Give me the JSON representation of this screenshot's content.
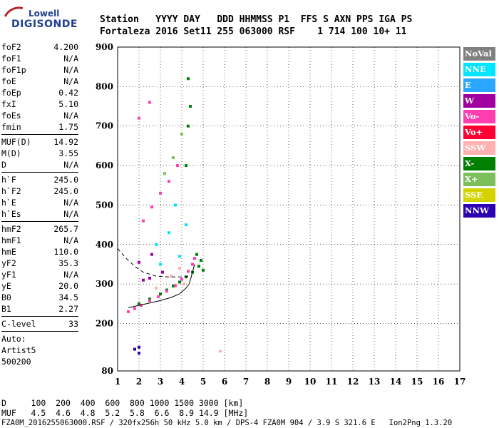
{
  "logo": {
    "line1": "Lowell",
    "line2": "DIGISONDE"
  },
  "header": {
    "row1": "Station   YYYY DAY   DDD HHMMSS P1  FFS S AXN PPS IGA PS",
    "row2": "Fortaleza 2016 Set11 255 063000 RSF    1 714 100 10+ 11"
  },
  "params": {
    "group1": [
      {
        "k": "foF2",
        "v": "4.200"
      },
      {
        "k": "foF1",
        "v": "N/A"
      },
      {
        "k": "foF1p",
        "v": "N/A"
      },
      {
        "k": "foE",
        "v": "N/A"
      },
      {
        "k": "foEp",
        "v": "0.42"
      },
      {
        "k": "fxI",
        "v": "5.10"
      },
      {
        "k": "foEs",
        "v": "N/A"
      },
      {
        "k": "fmin",
        "v": "1.75"
      }
    ],
    "group2": [
      {
        "k": "MUF(D)",
        "v": "14.92"
      },
      {
        "k": "M(D)",
        "v": "3.55"
      },
      {
        "k": "D",
        "v": "N/A"
      }
    ],
    "group3": [
      {
        "k": "h`F",
        "v": "245.0"
      },
      {
        "k": "h`F2",
        "v": "245.0"
      },
      {
        "k": "h`E",
        "v": "N/A"
      },
      {
        "k": "h`Es",
        "v": "N/A"
      }
    ],
    "group4": [
      {
        "k": "hmF2",
        "v": "265.7"
      },
      {
        "k": "hmF1",
        "v": "N/A"
      },
      {
        "k": "hmE",
        "v": "110.0"
      },
      {
        "k": "yF2",
        "v": "35.3"
      },
      {
        "k": "yF1",
        "v": "N/A"
      },
      {
        "k": "yE",
        "v": "20.0"
      },
      {
        "k": "B0",
        "v": "34.5"
      },
      {
        "k": "B1",
        "v": "2.27"
      }
    ],
    "group5": [
      {
        "k": "C-level",
        "v": "33"
      }
    ],
    "auto": [
      "Auto:",
      "Artist5",
      "500200"
    ]
  },
  "legend": [
    {
      "label": "NoVal",
      "color": "#808080"
    },
    {
      "label": "NNE",
      "color": "#00e5ff"
    },
    {
      "label": "E",
      "color": "#2aa7ff"
    },
    {
      "label": "W",
      "color": "#a000a0"
    },
    {
      "label": "Vo-",
      "color": "#ff3fb0"
    },
    {
      "label": "Vo+",
      "color": "#ff0033"
    },
    {
      "label": "SSW",
      "color": "#ffb0b0"
    },
    {
      "label": "X-",
      "color": "#008000"
    },
    {
      "label": "X+",
      "color": "#7dbf5a"
    },
    {
      "label": "SSE",
      "color": "#d4d400"
    },
    {
      "label": "NNW",
      "color": "#2a00b0"
    }
  ],
  "footer": {
    "row1": "D     100  200  400  600  800 1000 1500 3000 [km]",
    "row2": "MUF   4.5  4.6  4.8  5.2  5.8  6.6  8.9 14.9 [MHz]",
    "row3": "FZA0M_2016255063000.RSF / 320fx256h 50 kHz 5.0 km / DPS-4 FZA0M 904 / 3.9 S 321.6 E   Ion2Png 1.3.20"
  },
  "chart_data": {
    "type": "scatter",
    "title": "",
    "xlabel": "",
    "ylabel": "",
    "xlim": [
      1,
      17
    ],
    "ylim": [
      80,
      900
    ],
    "xticks": [
      1,
      2,
      3,
      4,
      5,
      6,
      7,
      8,
      9,
      10,
      11,
      12,
      13,
      14,
      15,
      16,
      17
    ],
    "yticks": [
      80,
      200,
      300,
      400,
      500,
      600,
      700,
      800,
      900
    ],
    "grid": true,
    "series": [
      {
        "name": "X-",
        "color": "#008000",
        "points": [
          [
            2.0,
            250
          ],
          [
            2.5,
            262
          ],
          [
            3.0,
            275
          ],
          [
            3.3,
            285
          ],
          [
            3.6,
            295
          ],
          [
            3.9,
            305
          ],
          [
            4.2,
            318
          ],
          [
            4.5,
            330
          ],
          [
            4.8,
            345
          ],
          [
            5.0,
            335
          ],
          [
            4.9,
            360
          ],
          [
            4.7,
            375
          ],
          [
            4.2,
            600
          ],
          [
            4.3,
            700
          ],
          [
            4.4,
            750
          ],
          [
            4.3,
            820
          ]
        ]
      },
      {
        "name": "Vo-",
        "color": "#ff3fb0",
        "points": [
          [
            1.5,
            230
          ],
          [
            1.8,
            238
          ],
          [
            2.1,
            246
          ],
          [
            2.5,
            258
          ],
          [
            2.9,
            268
          ],
          [
            3.3,
            282
          ],
          [
            3.7,
            296
          ],
          [
            4.0,
            312
          ],
          [
            4.3,
            332
          ],
          [
            4.5,
            350
          ],
          [
            4.6,
            365
          ],
          [
            2.2,
            460
          ],
          [
            2.6,
            495
          ],
          [
            3.0,
            530
          ],
          [
            3.4,
            560
          ],
          [
            3.8,
            600
          ],
          [
            2.0,
            720
          ],
          [
            2.5,
            760
          ]
        ]
      },
      {
        "name": "NNE",
        "color": "#00e5ff",
        "points": [
          [
            2.8,
            400
          ],
          [
            3.0,
            350
          ],
          [
            3.4,
            430
          ],
          [
            3.7,
            500
          ],
          [
            3.9,
            370
          ],
          [
            4.2,
            450
          ]
        ]
      },
      {
        "name": "W",
        "color": "#a000a0",
        "points": [
          [
            2.2,
            310
          ],
          [
            2.5,
            315
          ],
          [
            2.0,
            355
          ],
          [
            2.6,
            375
          ],
          [
            3.1,
            330
          ]
        ]
      },
      {
        "name": "SSW",
        "color": "#ffb0b0",
        "points": [
          [
            3.5,
            320
          ],
          [
            3.9,
            340
          ],
          [
            4.1,
            300
          ],
          [
            2.8,
            290
          ],
          [
            5.8,
            130
          ]
        ]
      },
      {
        "name": "NNW",
        "color": "#2a00b0",
        "points": [
          [
            1.8,
            135
          ],
          [
            2.0,
            140
          ],
          [
            2.0,
            125
          ]
        ]
      },
      {
        "name": "X+",
        "color": "#7dbf5a",
        "points": [
          [
            3.2,
            580
          ],
          [
            3.6,
            620
          ],
          [
            4.0,
            680
          ]
        ]
      }
    ],
    "traces": [
      {
        "points": [
          [
            1.5,
            240
          ],
          [
            2.0,
            246
          ],
          [
            2.5,
            252
          ],
          [
            3.0,
            258
          ],
          [
            3.5,
            266
          ],
          [
            3.9,
            275
          ],
          [
            4.2,
            290
          ],
          [
            4.35,
            300
          ],
          [
            4.5,
            330
          ],
          [
            4.6,
            350
          ]
        ]
      },
      {
        "points": [
          [
            1.0,
            390
          ],
          [
            1.4,
            365
          ],
          [
            1.8,
            345
          ],
          [
            2.2,
            330
          ],
          [
            2.8,
            320
          ],
          [
            3.4,
            318
          ],
          [
            4.0,
            318
          ],
          [
            4.3,
            320
          ]
        ],
        "dashed": true
      }
    ]
  }
}
